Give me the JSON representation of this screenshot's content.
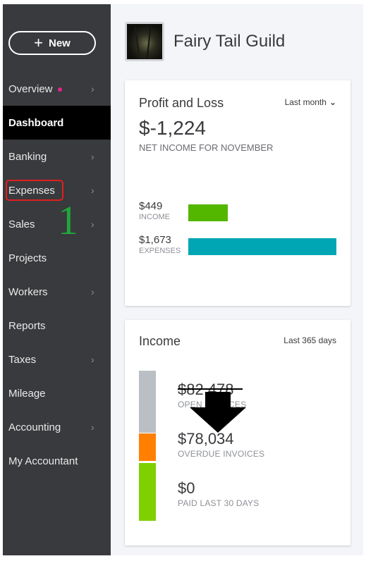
{
  "sidebar": {
    "new_label": "New",
    "items": [
      {
        "label": "Overview",
        "chevron": true,
        "dot": true
      },
      {
        "label": "Dashboard",
        "active": true
      },
      {
        "label": "Banking",
        "chevron": true
      },
      {
        "label": "Expenses",
        "chevron": true,
        "highlighted": true
      },
      {
        "label": "Sales",
        "chevron": true
      },
      {
        "label": "Projects"
      },
      {
        "label": "Workers",
        "chevron": true
      },
      {
        "label": "Reports"
      },
      {
        "label": "Taxes",
        "chevron": true
      },
      {
        "label": "Mileage"
      },
      {
        "label": "Accounting",
        "chevron": true
      },
      {
        "label": "My Accountant"
      }
    ],
    "annotation_number": "1"
  },
  "company": {
    "name": "Fairy Tail Guild"
  },
  "profit_loss": {
    "title": "Profit and Loss",
    "range": "Last month",
    "net_income": "$-1,224",
    "net_label": "NET INCOME FOR NOVEMBER",
    "income_amount": "$449",
    "income_label": "INCOME",
    "income_value": 449,
    "expenses_amount": "$1,673",
    "expenses_label": "EXPENSES",
    "expenses_value": 1673
  },
  "income": {
    "title": "Income",
    "range": "Last 365 days",
    "open_amount": "$82,478",
    "open_label": "OPEN INVOICES",
    "overdue_amount": "$78,034",
    "overdue_label": "OVERDUE INVOICES",
    "paid_amount": "$0",
    "paid_label": "PAID LAST 30 DAYS"
  },
  "colors": {
    "sidebar_bg": "#393a3d",
    "active_bg": "#000000",
    "overview_dot": "#e3258a",
    "highlight_box": "#e0201f",
    "annotation_green": "#1ea83a",
    "income_bar": "#53b700",
    "expenses_bar": "#00a6b4",
    "open_segment": "#babec5",
    "overdue_segment": "#ff8000",
    "paid_segment": "#7fd000"
  },
  "icons": {
    "new": "plus-icon",
    "chevron": "chevron-right-icon",
    "range": "chevron-down-icon",
    "annotation": "down-arrow-icon"
  }
}
